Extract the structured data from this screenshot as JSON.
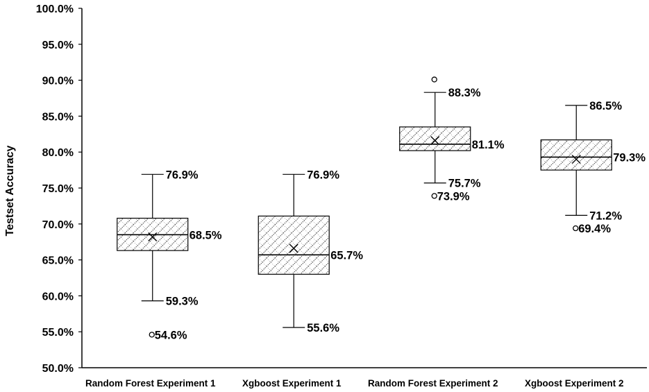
{
  "chart_data": {
    "type": "boxplot",
    "ylabel": "Testset Accuracy",
    "ylim": [
      50.0,
      100.0
    ],
    "y_tick_step": 5.0,
    "y_tick_labels": [
      "50.0%",
      "55.0%",
      "60.0%",
      "65.0%",
      "70.0%",
      "75.0%",
      "80.0%",
      "85.0%",
      "90.0%",
      "95.0%",
      "100.0%"
    ],
    "categories": [
      "Random Forest Experiment 1",
      "Xgboost Experiment 1",
      "Random Forest Experiment 2",
      "Xgboost Experiment 2"
    ],
    "grid": false,
    "legend": "none",
    "box_fill": "crosshatch",
    "colors": {
      "line": "#000000",
      "hatch": "#555555",
      "background": "#ffffff"
    },
    "series": [
      {
        "category": "Random Forest Experiment 1",
        "whisker_low": 59.3,
        "q1": 66.3,
        "median": 68.5,
        "q3": 70.8,
        "whisker_high": 76.9,
        "mean": 68.2,
        "outliers": [
          54.6
        ],
        "labels": {
          "whisker_high": "76.9%",
          "median": "68.5%",
          "whisker_low": "59.3%",
          "outlier": "54.6%"
        }
      },
      {
        "category": "Xgboost Experiment 1",
        "whisker_low": 55.6,
        "q1": 63.0,
        "median": 65.7,
        "q3": 71.1,
        "whisker_high": 76.9,
        "mean": 66.6,
        "outliers": [],
        "labels": {
          "whisker_high": "76.9%",
          "median": "65.7%",
          "whisker_low": "55.6%"
        }
      },
      {
        "category": "Random Forest Experiment 2",
        "whisker_low": 75.7,
        "q1": 80.2,
        "median": 81.1,
        "q3": 83.5,
        "whisker_high": 88.3,
        "mean": 81.6,
        "outliers": [
          90.1,
          73.9
        ],
        "labels": {
          "whisker_high": "88.3%",
          "median": "81.1%",
          "whisker_low": "75.7%",
          "outlier": "73.9%"
        }
      },
      {
        "category": "Xgboost Experiment 2",
        "whisker_low": 71.2,
        "q1": 77.5,
        "median": 79.3,
        "q3": 81.7,
        "whisker_high": 86.5,
        "mean": 79.0,
        "outliers": [
          69.4
        ],
        "labels": {
          "whisker_high": "86.5%",
          "median": "79.3%",
          "whisker_low": "71.2%",
          "outlier": "69.4%"
        }
      }
    ]
  }
}
